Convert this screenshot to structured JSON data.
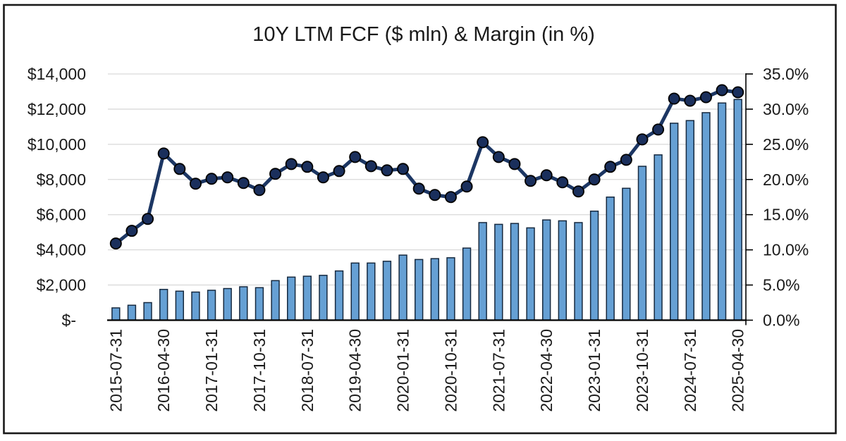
{
  "colors": {
    "background": "#ffffff",
    "frame_border": "#1a1a1a",
    "bar_fill": "#66A0D4",
    "bar_stroke": "#16293F",
    "line_color": "#1C3663",
    "marker_fill": "#1A2F5C",
    "marker_stroke": "#000000",
    "gridline": "#D9D9D9",
    "axis_line": "#000000",
    "text": "#1a1a1a"
  },
  "chart_data": {
    "type": "bar+line combo",
    "title": "10Y LTM FCF ($ mln) & Margin (in %)",
    "legend": "none",
    "grid": "horizontal",
    "categories": [
      "2015-07-31",
      "2015-10-31",
      "2016-01-31",
      "2016-04-30",
      "2016-07-31",
      "2016-10-31",
      "2017-01-31",
      "2017-04-30",
      "2017-07-31",
      "2017-10-31",
      "2018-01-31",
      "2018-04-30",
      "2018-07-31",
      "2018-10-31",
      "2019-01-31",
      "2019-04-30",
      "2019-07-31",
      "2019-10-31",
      "2020-01-31",
      "2020-04-30",
      "2020-07-31",
      "2020-10-31",
      "2021-01-31",
      "2021-04-30",
      "2021-07-31",
      "2021-10-31",
      "2022-01-31",
      "2022-04-30",
      "2022-07-31",
      "2022-10-31",
      "2023-01-31",
      "2023-04-30",
      "2023-07-31",
      "2023-10-31",
      "2024-01-31",
      "2024-04-30",
      "2024-07-31",
      "2024-10-31",
      "2025-01-31",
      "2025-04-30"
    ],
    "series": [
      {
        "name": "LTM FCF ($ mln)",
        "type": "bar",
        "axis": "left",
        "values": [
          700,
          850,
          1000,
          1750,
          1650,
          1600,
          1700,
          1800,
          1900,
          1850,
          2250,
          2450,
          2500,
          2550,
          2800,
          3250,
          3250,
          3350,
          3700,
          3450,
          3500,
          3550,
          4100,
          5550,
          5450,
          5500,
          5250,
          5700,
          5650,
          5550,
          6200,
          7000,
          7500,
          8750,
          9400,
          11200,
          11350,
          11800,
          12350,
          12550
        ]
      },
      {
        "name": "LTM FCF Margin (in %)",
        "type": "line",
        "axis": "right",
        "values": [
          10.9,
          12.7,
          14.4,
          23.7,
          21.5,
          19.4,
          20.1,
          20.3,
          19.5,
          18.5,
          20.8,
          22.2,
          21.8,
          20.3,
          21.2,
          23.2,
          21.9,
          21.3,
          21.5,
          18.7,
          17.8,
          17.5,
          19.0,
          25.3,
          23.2,
          22.2,
          19.8,
          20.6,
          19.6,
          18.3,
          20.0,
          21.8,
          22.8,
          25.7,
          27.1,
          31.5,
          31.2,
          31.7,
          32.7,
          32.4
        ]
      }
    ],
    "left_axis": {
      "min": 0,
      "max": 14000,
      "step": 2000,
      "tick_labels": [
        "$-",
        "$2,000",
        "$4,000",
        "$6,000",
        "$8,000",
        "$10,000",
        "$12,000",
        "$14,000"
      ]
    },
    "right_axis": {
      "min": 0,
      "max": 35,
      "step": 5,
      "tick_labels": [
        "0.0%",
        "5.0%",
        "10.0%",
        "15.0%",
        "20.0%",
        "25.0%",
        "30.0%",
        "35.0%"
      ]
    },
    "x_axis": {
      "label_interval": 3,
      "label_rotation_deg": -90,
      "visible_labels": [
        "2015-07-31",
        "2016-04-30",
        "2017-01-31",
        "2017-10-31",
        "2018-07-31",
        "2019-04-30",
        "2020-01-31",
        "2020-10-31",
        "2021-07-31",
        "2022-04-30",
        "2023-01-31",
        "2023-10-31",
        "2024-07-31",
        "2025-04-30"
      ]
    }
  }
}
